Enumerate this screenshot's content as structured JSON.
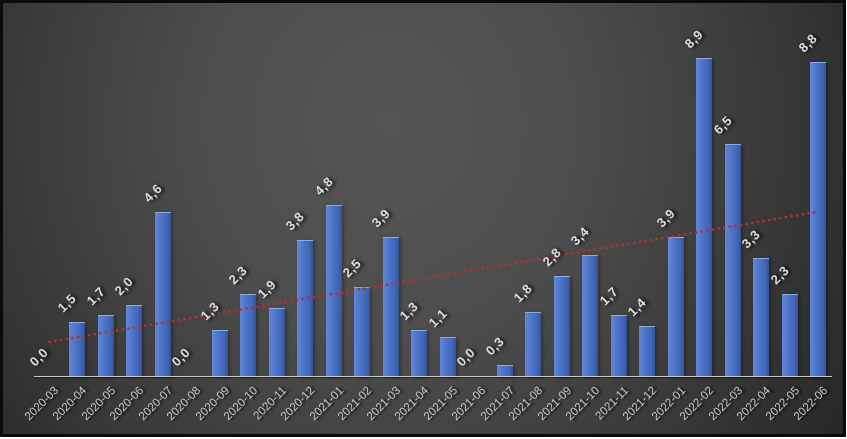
{
  "chart_data": {
    "type": "bar",
    "title": "",
    "xlabel": "",
    "ylabel": "",
    "categories": [
      "2020-03",
      "2020-04",
      "2020-05",
      "2020-06",
      "2020-07",
      "2020-08",
      "2020-09",
      "2020-10",
      "2020-11",
      "2020-12",
      "2021-01",
      "2021-02",
      "2021-03",
      "2021-04",
      "2021-05",
      "2021-06",
      "2021-07",
      "2021-08",
      "2021-09",
      "2021-10",
      "2021-11",
      "2021-12",
      "2022-01",
      "2022-02",
      "2022-03",
      "2022-04",
      "2022-05",
      "2022-06"
    ],
    "values": [
      0.0,
      1.5,
      1.7,
      2.0,
      4.6,
      0.0,
      1.3,
      2.3,
      1.9,
      3.8,
      4.8,
      2.5,
      3.9,
      1.3,
      1.1,
      0.0,
      0.3,
      1.8,
      2.8,
      3.4,
      1.7,
      1.4,
      3.9,
      8.9,
      6.5,
      3.3,
      2.3,
      8.8
    ],
    "data_labels": [
      "0,0",
      "1,5",
      "1,7",
      "2,0",
      "4,6",
      "0,0",
      "1,3",
      "2,3",
      "1,9",
      "3,8",
      "4,8",
      "2,5",
      "3,9",
      "1,3",
      "1,1",
      "0,0",
      "0,3",
      "1,8",
      "2,8",
      "3,4",
      "1,7",
      "1,4",
      "3,9",
      "8,9",
      "6,5",
      "3,3",
      "2,3",
      "8,8"
    ],
    "decimal_separator": ",",
    "ylim": [
      0,
      10
    ],
    "grid": false,
    "legend": false,
    "label_rotation_deg": -45,
    "axis_label_rotation_deg": -45,
    "trendline": {
      "type": "linear",
      "style": "dotted",
      "color": "#b23131",
      "start_value": 0.95,
      "end_value": 4.6
    },
    "colors": {
      "bar": "#4d74c8",
      "bar_highlight": "#6287d9",
      "bar_shadow_edge": "#365391",
      "background_center": "#525252",
      "background_corner": "#262626",
      "frame_border": "#0b0b0b",
      "axis_line": "#c8c8c8",
      "data_label": "#dfdfdf",
      "axis_label": "#cbcbcb"
    }
  }
}
